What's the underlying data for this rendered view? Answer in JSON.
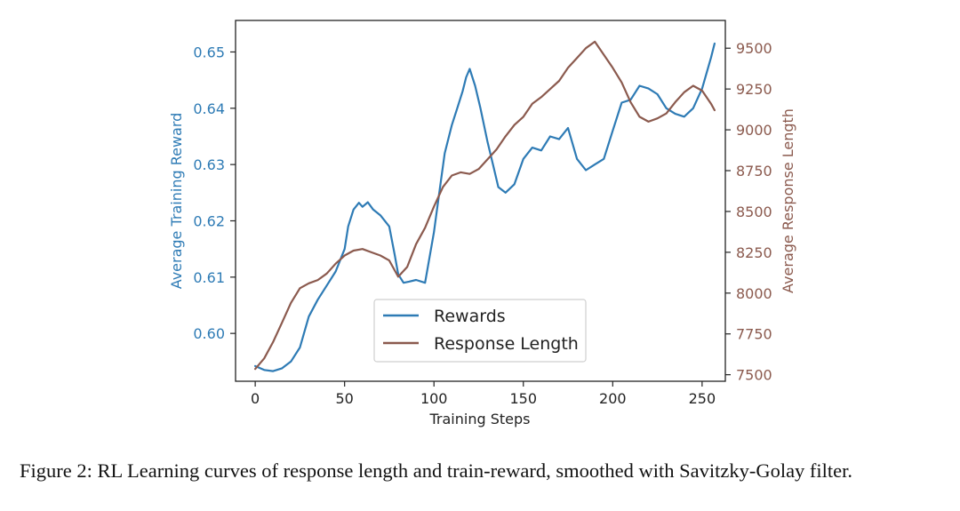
{
  "chart_data": {
    "type": "line",
    "xlabel": "Training Steps",
    "ylabel_left": "Average Training Reward",
    "ylabel_right": "Average Response Length",
    "xlim": [
      -11,
      263
    ],
    "ylim_left": [
      0.5915,
      0.6556
    ],
    "ylim_right": [
      7460,
      9670
    ],
    "x_ticks": [
      0,
      50,
      100,
      150,
      200,
      250
    ],
    "y_ticks_left": [
      0.6,
      0.61,
      0.62,
      0.63,
      0.64,
      0.65
    ],
    "y_ticks_left_labels": [
      "0.60",
      "0.61",
      "0.62",
      "0.63",
      "0.64",
      "0.65"
    ],
    "y_ticks_right": [
      7500,
      7750,
      8000,
      8250,
      8500,
      8750,
      9000,
      9250,
      9500
    ],
    "legend_position": "lower-center",
    "colors": {
      "rewards": "#2e7bb5",
      "response_length": "#8b5a4e"
    },
    "series": [
      {
        "name": "Rewards",
        "axis": "left",
        "x": [
          0,
          5,
          10,
          15,
          20,
          25,
          30,
          35,
          40,
          45,
          50,
          52,
          55,
          58,
          60,
          63,
          66,
          70,
          75,
          78,
          80,
          83,
          86,
          90,
          95,
          100,
          103,
          106,
          110,
          113,
          116,
          118,
          120,
          123,
          126,
          130,
          133,
          136,
          140,
          145,
          150,
          155,
          160,
          165,
          170,
          175,
          180,
          185,
          190,
          195,
          200,
          205,
          210,
          215,
          220,
          225,
          230,
          235,
          240,
          245,
          250,
          255,
          257
        ],
        "y": [
          0.5942,
          0.5935,
          0.5933,
          0.5938,
          0.595,
          0.5975,
          0.603,
          0.606,
          0.6085,
          0.611,
          0.615,
          0.619,
          0.622,
          0.6232,
          0.6225,
          0.6233,
          0.622,
          0.621,
          0.619,
          0.614,
          0.6105,
          0.609,
          0.6092,
          0.6095,
          0.609,
          0.618,
          0.625,
          0.632,
          0.637,
          0.64,
          0.643,
          0.6455,
          0.647,
          0.644,
          0.64,
          0.634,
          0.63,
          0.626,
          0.625,
          0.6265,
          0.631,
          0.633,
          0.6325,
          0.635,
          0.6345,
          0.6365,
          0.631,
          0.629,
          0.63,
          0.631,
          0.636,
          0.641,
          0.6415,
          0.644,
          0.6435,
          0.6425,
          0.64,
          0.639,
          0.6385,
          0.64,
          0.6435,
          0.649,
          0.6515
        ]
      },
      {
        "name": "Response Length",
        "axis": "right",
        "x": [
          0,
          5,
          10,
          15,
          20,
          25,
          30,
          35,
          40,
          45,
          50,
          55,
          60,
          65,
          70,
          75,
          80,
          85,
          90,
          95,
          100,
          105,
          110,
          115,
          120,
          125,
          130,
          135,
          140,
          145,
          150,
          155,
          160,
          165,
          170,
          175,
          180,
          185,
          190,
          195,
          200,
          205,
          210,
          215,
          220,
          225,
          230,
          235,
          240,
          245,
          250,
          255,
          257
        ],
        "y": [
          7535,
          7600,
          7700,
          7820,
          7940,
          8030,
          8060,
          8080,
          8120,
          8180,
          8230,
          8260,
          8270,
          8250,
          8230,
          8200,
          8100,
          8160,
          8300,
          8400,
          8530,
          8650,
          8720,
          8740,
          8730,
          8760,
          8820,
          8880,
          8960,
          9030,
          9080,
          9160,
          9200,
          9250,
          9300,
          9380,
          9440,
          9500,
          9540,
          9460,
          9380,
          9290,
          9170,
          9080,
          9050,
          9070,
          9100,
          9170,
          9230,
          9270,
          9240,
          9160,
          9120
        ]
      }
    ]
  },
  "caption": "Figure 2: RL Learning curves of response length and train-reward, smoothed with Savitzky-Golay filter."
}
